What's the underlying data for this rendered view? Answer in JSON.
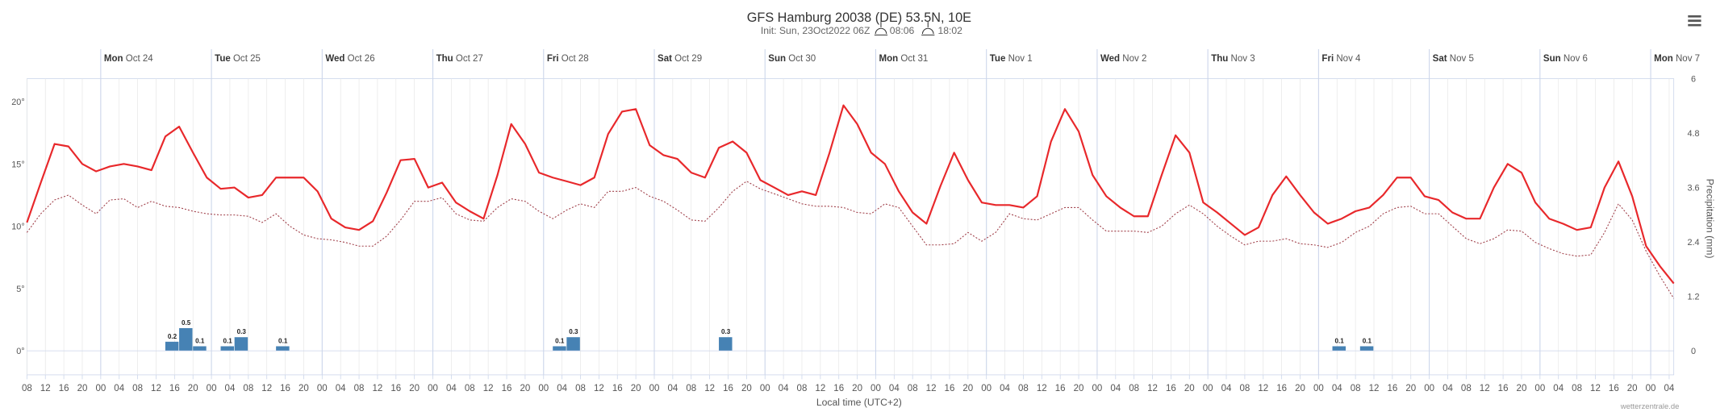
{
  "chart_data": {
    "type": "line",
    "title": "GFS Hamburg 20038 (DE) 53.5N, 10E",
    "subtitle": "Init: Sun, 23Oct2022 06Z",
    "sunrise": "08:06",
    "sunset": "18:02",
    "x_label": "Local time (UTC+2)",
    "y2_label": "Precipitation (mm)",
    "credit": "wetterzentrale.de",
    "xlim": [
      "10-23 08:00",
      "11-07 05:00"
    ],
    "ylim": [
      0,
      21.84
    ],
    "yticks": [
      {
        "value": 0,
        "label": "0°"
      },
      {
        "value": 5,
        "label": "5°"
      },
      {
        "value": 10,
        "label": "10°"
      },
      {
        "value": 15,
        "label": "15°"
      },
      {
        "value": 20,
        "label": "20°"
      }
    ],
    "y2lim": [
      0,
      6
    ],
    "y2ticks": [
      0,
      1.2,
      2.4,
      3.6,
      4.8,
      6
    ],
    "grid": true,
    "days": [
      {
        "value": "10-24 00:00",
        "weekday": "Mon",
        "date": "Oct 24"
      },
      {
        "value": "10-25 00:00",
        "weekday": "Tue",
        "date": "Oct 25"
      },
      {
        "value": "10-26 00:00",
        "weekday": "Wed",
        "date": "Oct 26"
      },
      {
        "value": "10-27 00:00",
        "weekday": "Thu",
        "date": "Oct 27"
      },
      {
        "value": "10-28 00:00",
        "weekday": "Fri",
        "date": "Oct 28"
      },
      {
        "value": "10-29 00:00",
        "weekday": "Sat",
        "date": "Oct 29"
      },
      {
        "value": "10-30 00:00",
        "weekday": "Sun",
        "date": "Oct 30"
      },
      {
        "value": "10-31 00:00",
        "weekday": "Mon",
        "date": "Oct 31"
      },
      {
        "value": "11-01 00:00",
        "weekday": "Tue",
        "date": "Nov 1"
      },
      {
        "value": "11-02 00:00",
        "weekday": "Wed",
        "date": "Nov 2"
      },
      {
        "value": "11-03 00:00",
        "weekday": "Thu",
        "date": "Nov 3"
      },
      {
        "value": "11-04 00:00",
        "weekday": "Fri",
        "date": "Nov 4"
      },
      {
        "value": "11-05 00:00",
        "weekday": "Sat",
        "date": "Nov 5"
      },
      {
        "value": "11-06 00:00",
        "weekday": "Sun",
        "date": "Nov 6"
      },
      {
        "value": "11-07 00:00",
        "weekday": "Mon",
        "date": "Nov 7"
      }
    ],
    "xticks": [
      {
        "value": "10-23 08:00",
        "label": "08"
      },
      {
        "value": "10-23 12:00",
        "label": "12"
      },
      {
        "value": "10-23 16:00",
        "label": "16"
      },
      {
        "value": "10-23 20:00",
        "label": "20"
      },
      {
        "value": "10-24 00:00",
        "label": "00"
      },
      {
        "value": "10-24 04:00",
        "label": "04"
      },
      {
        "value": "10-24 08:00",
        "label": "08"
      },
      {
        "value": "10-24 12:00",
        "label": "12"
      },
      {
        "value": "10-24 16:00",
        "label": "16"
      },
      {
        "value": "10-24 20:00",
        "label": "20"
      },
      {
        "value": "10-25 00:00",
        "label": "00"
      },
      {
        "value": "10-25 04:00",
        "label": "04"
      },
      {
        "value": "10-25 08:00",
        "label": "08"
      },
      {
        "value": "10-25 12:00",
        "label": "12"
      },
      {
        "value": "10-25 16:00",
        "label": "16"
      },
      {
        "value": "10-25 20:00",
        "label": "20"
      },
      {
        "value": "10-26 00:00",
        "label": "00"
      },
      {
        "value": "10-26 04:00",
        "label": "04"
      },
      {
        "value": "10-26 08:00",
        "label": "08"
      },
      {
        "value": "10-26 12:00",
        "label": "12"
      },
      {
        "value": "10-26 16:00",
        "label": "16"
      },
      {
        "value": "10-26 20:00",
        "label": "20"
      },
      {
        "value": "10-27 00:00",
        "label": "00"
      },
      {
        "value": "10-27 04:00",
        "label": "04"
      },
      {
        "value": "10-27 08:00",
        "label": "08"
      },
      {
        "value": "10-27 12:00",
        "label": "12"
      },
      {
        "value": "10-27 16:00",
        "label": "16"
      },
      {
        "value": "10-27 20:00",
        "label": "20"
      },
      {
        "value": "10-28 00:00",
        "label": "00"
      },
      {
        "value": "10-28 04:00",
        "label": "04"
      },
      {
        "value": "10-28 08:00",
        "label": "08"
      },
      {
        "value": "10-28 12:00",
        "label": "12"
      },
      {
        "value": "10-28 16:00",
        "label": "16"
      },
      {
        "value": "10-28 20:00",
        "label": "20"
      },
      {
        "value": "10-29 00:00",
        "label": "00"
      },
      {
        "value": "10-29 04:00",
        "label": "04"
      },
      {
        "value": "10-29 08:00",
        "label": "08"
      },
      {
        "value": "10-29 12:00",
        "label": "12"
      },
      {
        "value": "10-29 16:00",
        "label": "16"
      },
      {
        "value": "10-29 20:00",
        "label": "20"
      },
      {
        "value": "10-30 00:00",
        "label": "00"
      },
      {
        "value": "10-30 04:00",
        "label": "04"
      },
      {
        "value": "10-30 08:00",
        "label": "08"
      },
      {
        "value": "10-30 12:00",
        "label": "12"
      },
      {
        "value": "10-30 16:00",
        "label": "16"
      },
      {
        "value": "10-30 20:00",
        "label": "20"
      },
      {
        "value": "10-31 00:00",
        "label": "00"
      },
      {
        "value": "10-31 04:00",
        "label": "04"
      },
      {
        "value": "10-31 08:00",
        "label": "08"
      },
      {
        "value": "10-31 12:00",
        "label": "12"
      },
      {
        "value": "10-31 16:00",
        "label": "16"
      },
      {
        "value": "10-31 20:00",
        "label": "20"
      },
      {
        "value": "11-01 00:00",
        "label": "00"
      },
      {
        "value": "11-01 04:00",
        "label": "04"
      },
      {
        "value": "11-01 08:00",
        "label": "08"
      },
      {
        "value": "11-01 12:00",
        "label": "12"
      },
      {
        "value": "11-01 16:00",
        "label": "16"
      },
      {
        "value": "11-01 20:00",
        "label": "20"
      },
      {
        "value": "11-02 00:00",
        "label": "00"
      },
      {
        "value": "11-02 04:00",
        "label": "04"
      },
      {
        "value": "11-02 08:00",
        "label": "08"
      },
      {
        "value": "11-02 12:00",
        "label": "12"
      },
      {
        "value": "11-02 16:00",
        "label": "16"
      },
      {
        "value": "11-02 20:00",
        "label": "20"
      },
      {
        "value": "11-03 00:00",
        "label": "00"
      },
      {
        "value": "11-03 04:00",
        "label": "04"
      },
      {
        "value": "11-03 08:00",
        "label": "08"
      },
      {
        "value": "11-03 12:00",
        "label": "12"
      },
      {
        "value": "11-03 16:00",
        "label": "16"
      },
      {
        "value": "11-03 20:00",
        "label": "20"
      },
      {
        "value": "11-04 00:00",
        "label": "00"
      },
      {
        "value": "11-04 04:00",
        "label": "04"
      },
      {
        "value": "11-04 08:00",
        "label": "08"
      },
      {
        "value": "11-04 12:00",
        "label": "12"
      },
      {
        "value": "11-04 16:00",
        "label": "16"
      },
      {
        "value": "11-04 20:00",
        "label": "20"
      },
      {
        "value": "11-05 00:00",
        "label": "00"
      },
      {
        "value": "11-05 04:00",
        "label": "04"
      },
      {
        "value": "11-05 08:00",
        "label": "08"
      },
      {
        "value": "11-05 12:00",
        "label": "12"
      },
      {
        "value": "11-05 16:00",
        "label": "16"
      },
      {
        "value": "11-05 20:00",
        "label": "20"
      },
      {
        "value": "11-06 00:00",
        "label": "00"
      },
      {
        "value": "11-06 04:00",
        "label": "04"
      },
      {
        "value": "11-06 08:00",
        "label": "08"
      },
      {
        "value": "11-06 12:00",
        "label": "12"
      },
      {
        "value": "11-06 16:00",
        "label": "16"
      },
      {
        "value": "11-06 20:00",
        "label": "20"
      },
      {
        "value": "11-07 00:00",
        "label": "00"
      },
      {
        "value": "11-07 04:00",
        "label": "04"
      }
    ],
    "x": [
      "10-23 08:00",
      "10-23 11:00",
      "10-23 14:00",
      "10-23 17:00",
      "10-23 20:00",
      "10-23 23:00",
      "10-24 02:00",
      "10-24 05:00",
      "10-24 08:00",
      "10-24 11:00",
      "10-24 14:00",
      "10-24 17:00",
      "10-24 20:00",
      "10-24 23:00",
      "10-25 02:00",
      "10-25 05:00",
      "10-25 08:00",
      "10-25 11:00",
      "10-25 14:00",
      "10-25 17:00",
      "10-25 20:00",
      "10-25 23:00",
      "10-26 02:00",
      "10-26 05:00",
      "10-26 08:00",
      "10-26 11:00",
      "10-26 14:00",
      "10-26 17:00",
      "10-26 20:00",
      "10-26 23:00",
      "10-27 02:00",
      "10-27 05:00",
      "10-27 08:00",
      "10-27 11:00",
      "10-27 14:00",
      "10-27 17:00",
      "10-27 20:00",
      "10-27 23:00",
      "10-28 02:00",
      "10-28 05:00",
      "10-28 08:00",
      "10-28 11:00",
      "10-28 14:00",
      "10-28 17:00",
      "10-28 20:00",
      "10-28 23:00",
      "10-29 02:00",
      "10-29 05:00",
      "10-29 08:00",
      "10-29 11:00",
      "10-29 14:00",
      "10-29 17:00",
      "10-29 20:00",
      "10-29 23:00",
      "10-30 02:00",
      "10-30 05:00",
      "10-30 08:00",
      "10-30 11:00",
      "10-30 14:00",
      "10-30 17:00",
      "10-30 20:00",
      "10-30 23:00",
      "10-31 02:00",
      "10-31 05:00",
      "10-31 08:00",
      "10-31 11:00",
      "10-31 14:00",
      "10-31 17:00",
      "10-31 20:00",
      "10-31 23:00",
      "11-01 02:00",
      "11-01 05:00",
      "11-01 08:00",
      "11-01 11:00",
      "11-01 14:00",
      "11-01 17:00",
      "11-01 20:00",
      "11-01 23:00",
      "11-02 02:00",
      "11-02 05:00",
      "11-02 08:00",
      "11-02 11:00",
      "11-02 14:00",
      "11-02 17:00",
      "11-02 20:00",
      "11-02 23:00",
      "11-03 02:00",
      "11-03 05:00",
      "11-03 08:00",
      "11-03 11:00",
      "11-03 14:00",
      "11-03 17:00",
      "11-03 20:00",
      "11-03 23:00",
      "11-04 02:00",
      "11-04 05:00",
      "11-04 08:00",
      "11-04 11:00",
      "11-04 14:00",
      "11-04 17:00",
      "11-04 20:00",
      "11-04 23:00",
      "11-05 02:00",
      "11-05 05:00",
      "11-05 08:00",
      "11-05 11:00",
      "11-05 14:00",
      "11-05 17:00",
      "11-05 20:00",
      "11-05 23:00",
      "11-06 02:00",
      "11-06 05:00",
      "11-06 08:00",
      "11-06 11:00",
      "11-06 14:00",
      "11-06 17:00",
      "11-06 20:00",
      "11-06 23:00",
      "11-07 02:00",
      "11-07 05:00"
    ],
    "series": [
      {
        "color": "#e8282b",
        "line_style": "solid",
        "values": [
          10.3,
          13.5,
          16.6,
          16.4,
          15.0,
          14.4,
          14.8,
          15.0,
          14.8,
          14.5,
          17.2,
          18.0,
          15.9,
          13.9,
          13.0,
          13.1,
          12.3,
          12.5,
          13.9,
          13.9,
          13.9,
          12.8,
          10.6,
          9.9,
          9.7,
          10.4,
          12.7,
          15.3,
          15.4,
          13.1,
          13.5,
          11.9,
          11.2,
          10.6,
          14.1,
          18.2,
          16.6,
          14.3,
          13.9,
          13.6,
          13.3,
          13.9,
          17.4,
          19.2,
          19.4,
          16.5,
          15.7,
          15.4,
          14.3,
          13.9,
          16.3,
          16.8,
          15.9,
          13.7,
          13.1,
          12.5,
          12.8,
          12.5,
          15.9,
          19.7,
          18.2,
          15.9,
          15.0,
          12.8,
          11.1,
          10.2,
          13.2,
          15.9,
          13.7,
          11.9,
          11.7,
          11.7,
          11.5,
          12.4,
          16.8,
          19.4,
          17.6,
          14.1,
          12.4,
          11.5,
          10.8,
          10.8,
          14.1,
          17.3,
          15.9,
          11.9,
          11.1,
          10.2,
          9.3,
          9.9,
          12.5,
          14.0,
          12.5,
          11.1,
          10.2,
          10.6,
          11.2,
          11.5,
          12.5,
          13.9,
          13.9,
          12.4,
          12.1,
          11.1,
          10.6,
          10.6,
          13.1,
          15.0,
          14.3,
          11.9,
          10.6,
          10.2,
          9.7,
          9.9,
          13.1,
          15.2,
          12.4,
          8.4,
          6.8,
          5.4
        ]
      },
      {
        "color": "#a0404a",
        "line_style": "dotted",
        "values": [
          9.5,
          11.0,
          12.1,
          12.5,
          11.7,
          11.0,
          12.1,
          12.2,
          11.5,
          12.0,
          11.6,
          11.5,
          11.2,
          11.0,
          10.9,
          10.9,
          10.8,
          10.3,
          11.0,
          10.0,
          9.3,
          9.0,
          8.9,
          8.7,
          8.4,
          8.4,
          9.2,
          10.5,
          12.0,
          12.0,
          12.3,
          11.0,
          10.5,
          10.4,
          11.5,
          12.2,
          12.0,
          11.2,
          10.6,
          11.3,
          11.8,
          11.5,
          12.8,
          12.8,
          13.1,
          12.4,
          12.0,
          11.3,
          10.5,
          10.4,
          11.5,
          12.8,
          13.6,
          13.0,
          12.6,
          12.2,
          11.8,
          11.6,
          11.6,
          11.5,
          11.1,
          11.0,
          11.8,
          11.5,
          10.0,
          8.5,
          8.5,
          8.6,
          9.5,
          8.8,
          9.5,
          11.0,
          10.6,
          10.5,
          11.0,
          11.5,
          11.5,
          10.5,
          9.6,
          9.6,
          9.6,
          9.5,
          10.0,
          11.0,
          11.7,
          11.0,
          10.0,
          9.2,
          8.5,
          8.8,
          8.8,
          9.0,
          8.6,
          8.5,
          8.3,
          8.7,
          9.5,
          10.0,
          11.0,
          11.5,
          11.6,
          11.0,
          11.0,
          10.0,
          9.0,
          8.6,
          9.0,
          9.7,
          9.6,
          8.7,
          8.2,
          7.8,
          7.6,
          7.7,
          9.5,
          11.8,
          10.5,
          8.0,
          6.0,
          4.2
        ]
      }
    ],
    "precipitation": {
      "type": "bar",
      "axis": "y2",
      "color": "#4682b4",
      "x": [
        "10-24 14:00",
        "10-24 17:00",
        "10-24 20:00",
        "10-25 02:00",
        "10-25 05:00",
        "10-25 14:00",
        "10-28 02:00",
        "10-28 05:00",
        "10-29 14:00",
        "11-04 03:00",
        "11-04 09:00"
      ],
      "values": [
        0.2,
        0.5,
        0.1,
        0.1,
        0.3,
        0.1,
        0.1,
        0.3,
        0.3,
        0.1,
        0.1
      ]
    }
  }
}
